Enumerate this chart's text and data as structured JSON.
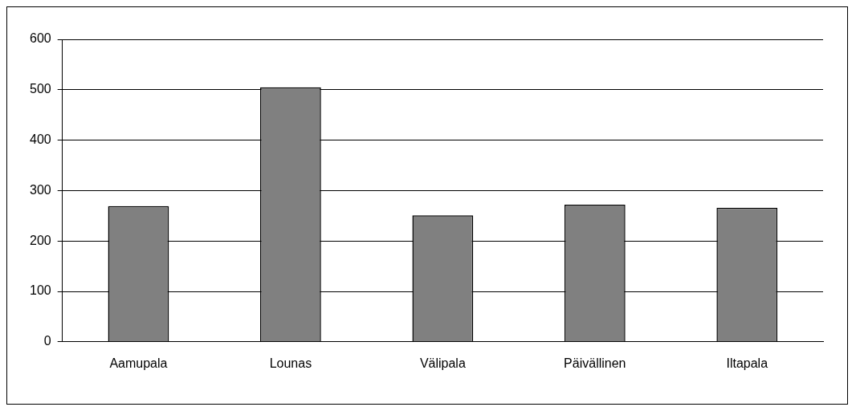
{
  "chart_data": {
    "type": "bar",
    "categories": [
      "Aamupala",
      "Lounas",
      "Välipala",
      "Päivällinen",
      "Iltapala"
    ],
    "values": [
      269,
      505,
      251,
      272,
      266
    ],
    "color": "#808080",
    "ylim": [
      0,
      600
    ],
    "yticks": [
      0,
      100,
      200,
      300,
      400,
      500,
      600
    ],
    "grid": "y"
  }
}
